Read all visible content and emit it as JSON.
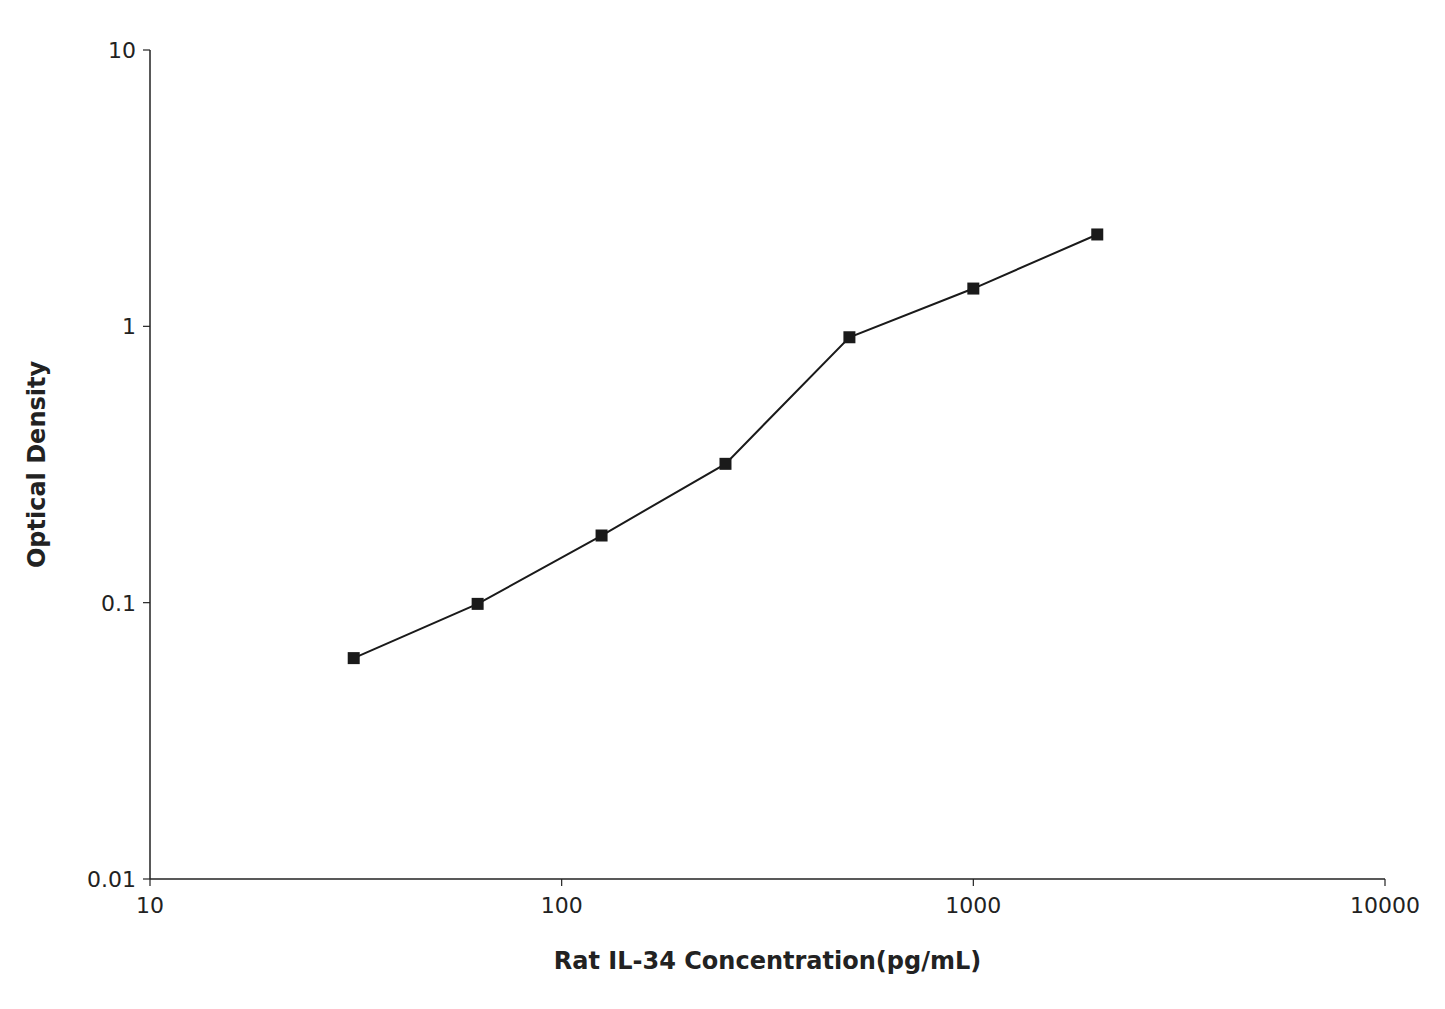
{
  "chart_data": {
    "type": "line",
    "x": [
      31.25,
      62.5,
      125,
      250,
      500,
      1000,
      2000
    ],
    "values": [
      0.063,
      0.099,
      0.175,
      0.318,
      0.913,
      1.37,
      2.15
    ],
    "xlabel": "Rat IL-34 Concentration(pg/mL)",
    "ylabel": "Optical Density",
    "xlim": [
      10,
      10000
    ],
    "ylim": [
      0.01,
      10
    ],
    "xticks": [
      10,
      100,
      1000,
      10000
    ],
    "yticks": [
      0.01,
      0.1,
      1,
      10
    ],
    "log": true,
    "grid": false,
    "color": "#1a1a1a",
    "marker": "square"
  }
}
